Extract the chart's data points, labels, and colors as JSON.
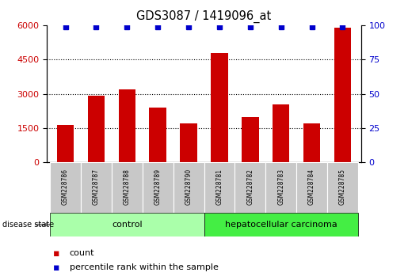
{
  "title": "GDS3087 / 1419096_at",
  "samples": [
    "GSM228786",
    "GSM228787",
    "GSM228788",
    "GSM228789",
    "GSM228790",
    "GSM228781",
    "GSM228782",
    "GSM228783",
    "GSM228784",
    "GSM228785"
  ],
  "counts": [
    1650,
    2900,
    3200,
    2400,
    1700,
    4800,
    2000,
    2550,
    1700,
    5900
  ],
  "percentile_ranks": [
    99,
    99,
    99,
    99,
    99,
    99,
    99,
    99,
    99,
    99
  ],
  "bar_color": "#cc0000",
  "dot_color": "#0000cc",
  "ylim_left": [
    0,
    6000
  ],
  "ylim_right": [
    0,
    100
  ],
  "yticks_left": [
    0,
    1500,
    3000,
    4500,
    6000
  ],
  "yticks_right": [
    0,
    25,
    50,
    75,
    100
  ],
  "control_color": "#aaffaa",
  "carcinoma_color": "#44ee44",
  "tick_label_area_color": "#c8c8c8",
  "legend_count_color": "#cc0000",
  "legend_rank_color": "#0000cc",
  "dotted_grid_values": [
    1500,
    3000,
    4500
  ],
  "n_control": 5,
  "n_carcinoma": 5
}
